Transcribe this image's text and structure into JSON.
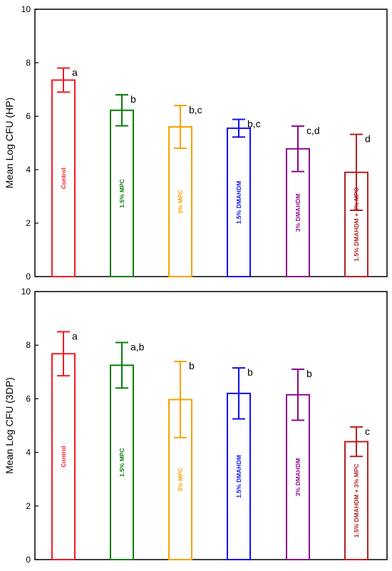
{
  "chart_data": [
    {
      "type": "bar",
      "title": "",
      "xlabel": "",
      "ylabel": "Mean Log CFU (HP)",
      "ylim": [
        0,
        10
      ],
      "yticks": [
        "0",
        "2",
        "4",
        "6",
        "8",
        "10"
      ],
      "grid": false,
      "categories": [
        "Control",
        "1.5% MPC",
        "3% MPC",
        "1.5% DMAHDM",
        "3% DMAHDM",
        "1.5% DMAHDM + 3% MPC"
      ],
      "values": [
        7.35,
        6.22,
        5.6,
        5.55,
        4.78,
        3.9
      ],
      "error": [
        0.45,
        0.58,
        0.8,
        0.33,
        0.85,
        1.42
      ],
      "significance": [
        "a",
        "b",
        "b,c",
        "b,c",
        "c,d",
        "d"
      ],
      "colors": [
        "#ee1c25",
        "#0a7f0a",
        "#f4a300",
        "#1010ee",
        "#8b0a8b",
        "#b22222"
      ]
    },
    {
      "type": "bar",
      "title": "",
      "xlabel": "",
      "ylabel": "Mean Log CFU (3DP)",
      "ylim": [
        0,
        10
      ],
      "yticks": [
        "0",
        "2",
        "4",
        "6",
        "8",
        "10"
      ],
      "grid": false,
      "categories": [
        "Control",
        "1.5% MPC",
        "3% MPC",
        "1.5% DMAHDM",
        "3% DMAHDM",
        "1.5% DMAHDM + 3% MPC"
      ],
      "values": [
        7.68,
        7.25,
        5.97,
        6.2,
        6.15,
        4.4
      ],
      "error": [
        0.82,
        0.85,
        1.42,
        0.95,
        0.95,
        0.55
      ],
      "significance": [
        "a",
        "a,b",
        "b",
        "b",
        "b",
        "c"
      ],
      "colors": [
        "#ee1c25",
        "#0a7f0a",
        "#f4a300",
        "#1010ee",
        "#8b0a8b",
        "#b22222"
      ]
    }
  ]
}
